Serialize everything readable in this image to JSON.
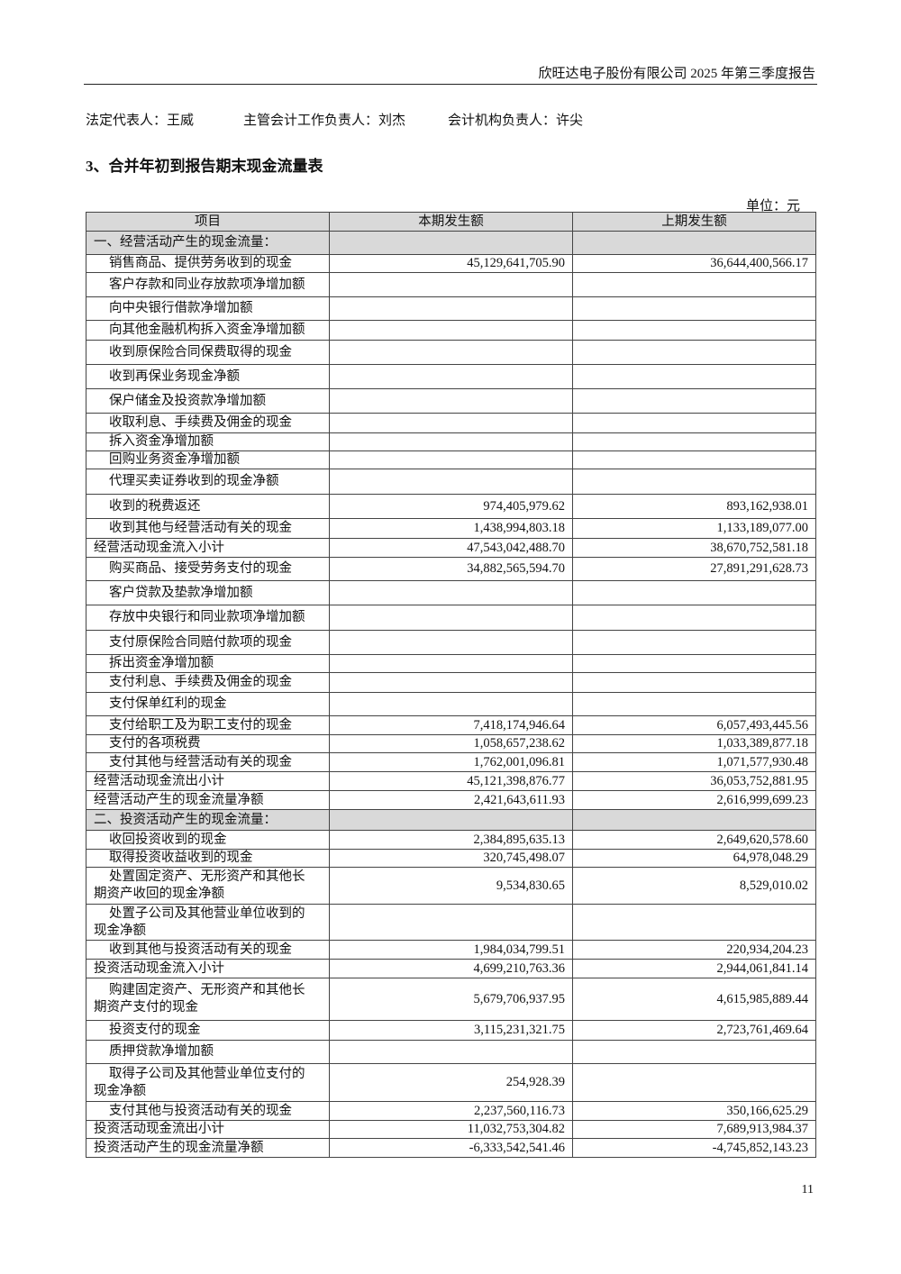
{
  "header": {
    "company_report": "欣旺达电子股份有限公司 2025 年第三季度报告"
  },
  "signatories": [
    "法定代表人：王威",
    "主管会计工作负责人：刘杰",
    "会计机构负责人：许尖"
  ],
  "section_title": "3、合并年初到报告期末现金流量表",
  "unit": "单位：元",
  "table": {
    "header": [
      "项目",
      "本期发生额",
      "上期发生额"
    ],
    "rows": [
      [
        "一、经营活动产生的现金流量：",
        null,
        null
      ],
      [
        "销售商品、提供劳务收到的现金",
        "45,129,641,705.90",
        "36,644,400,566.17"
      ],
      [
        "客户存款和同业存放款项净增加额",
        null,
        null
      ],
      [
        "向中央银行借款净增加额",
        null,
        null
      ],
      [
        "向其他金融机构拆入资金净增加额",
        null,
        null
      ],
      [
        "收到原保险合同保费取得的现金",
        null,
        null
      ],
      [
        "收到再保业务现金净额",
        null,
        null
      ],
      [
        "保户储金及投资款净增加额",
        null,
        null
      ],
      [
        "收取利息、手续费及佣金的现金",
        null,
        null
      ],
      [
        "拆入资金净增加额",
        null,
        null
      ],
      [
        "回购业务资金净增加额",
        null,
        null
      ],
      [
        "代理买卖证券收到的现金净额",
        null,
        null
      ],
      [
        "收到的税费返还",
        "974,405,979.62",
        "893,162,938.01"
      ],
      [
        "收到其他与经营活动有关的现金",
        "1,438,994,803.18",
        "1,133,189,077.00"
      ],
      [
        "经营活动现金流入小计",
        "47,543,042,488.70",
        "38,670,752,581.18"
      ],
      [
        "购买商品、接受劳务支付的现金",
        "34,882,565,594.70",
        "27,891,291,628.73"
      ],
      [
        "客户贷款及垫款净增加额",
        null,
        null
      ],
      [
        "存放中央银行和同业款项净增加额",
        null,
        null
      ],
      [
        "支付原保险合同赔付款项的现金",
        null,
        null
      ],
      [
        "拆出资金净增加额",
        null,
        null
      ],
      [
        "支付利息、手续费及佣金的现金",
        null,
        null
      ],
      [
        "支付保单红利的现金",
        null,
        null
      ],
      [
        "支付给职工及为职工支付的现金",
        "7,418,174,946.64",
        "6,057,493,445.56"
      ],
      [
        "支付的各项税费",
        "1,058,657,238.62",
        "1,033,389,877.18"
      ],
      [
        "支付其他与经营活动有关的现金",
        "1,762,001,096.81",
        "1,071,577,930.48"
      ],
      [
        "经营活动现金流出小计",
        "45,121,398,876.77",
        "36,053,752,881.95"
      ],
      [
        "经营活动产生的现金流量净额",
        "2,421,643,611.93",
        "2,616,999,699.23"
      ],
      [
        "二、投资活动产生的现金流量：",
        null,
        null
      ],
      [
        "收回投资收到的现金",
        "2,384,895,635.13",
        "2,649,620,578.60"
      ],
      [
        "取得投资收益收到的现金",
        "320,745,498.07",
        "64,978,048.29"
      ],
      [
        "处置固定资产、无形资产和其他长期资产收回的现金净额",
        "9,534,830.65",
        "8,529,010.02"
      ],
      [
        "处置子公司及其他营业单位收到的现金净额",
        null,
        null
      ],
      [
        "收到其他与投资活动有关的现金",
        "1,984,034,799.51",
        "220,934,204.23"
      ],
      [
        "投资活动现金流入小计",
        "4,699,210,763.36",
        "2,944,061,841.14"
      ],
      [
        "购建固定资产、无形资产和其他长期资产支付的现金",
        "5,679,706,937.95",
        "4,615,985,889.44"
      ],
      [
        "投资支付的现金",
        "3,115,231,321.75",
        "2,723,761,469.64"
      ],
      [
        "质押贷款净增加额",
        null,
        null
      ],
      [
        "取得子公司及其他营业单位支付的现金净额",
        "254,928.39",
        null
      ],
      [
        "支付其他与投资活动有关的现金",
        "2,237,560,116.73",
        "350,166,625.29"
      ],
      [
        "投资活动现金流出小计",
        "11,032,753,304.82",
        "7,689,913,984.37"
      ],
      [
        "投资活动产生的现金流量净额",
        "-6,333,542,541.46",
        "-4,745,852,143.23"
      ]
    ]
  },
  "page_number": "11"
}
